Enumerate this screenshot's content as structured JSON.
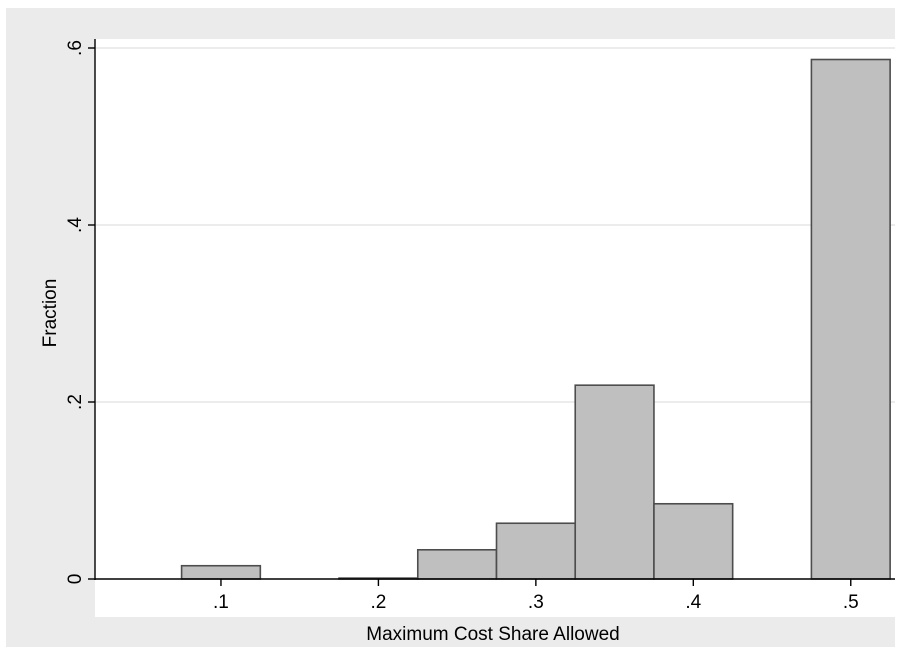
{
  "chart_data": {
    "type": "bar",
    "title": "",
    "xlabel": "Maximum Cost Share Allowed",
    "ylabel": "Fraction",
    "xlim": [
      0.02,
      0.53
    ],
    "ylim": [
      0,
      0.6
    ],
    "x_ticks": [
      {
        "value": 0.1,
        "label": ".1"
      },
      {
        "value": 0.2,
        "label": ".2"
      },
      {
        "value": 0.3,
        "label": ".3"
      },
      {
        "value": 0.4,
        "label": ".4"
      },
      {
        "value": 0.5,
        "label": ".5"
      }
    ],
    "y_ticks": [
      {
        "value": 0,
        "label": "0"
      },
      {
        "value": 0.2,
        "label": ".2"
      },
      {
        "value": 0.4,
        "label": ".4"
      },
      {
        "value": 0.6,
        "label": ".6"
      }
    ],
    "grid": true,
    "bar_width": 0.05,
    "bars": [
      {
        "x": 0.1,
        "value": 0.015
      },
      {
        "x": 0.2,
        "value": 0.001
      },
      {
        "x": 0.25,
        "value": 0.033
      },
      {
        "x": 0.3,
        "value": 0.063
      },
      {
        "x": 0.35,
        "value": 0.219
      },
      {
        "x": 0.4,
        "value": 0.085
      },
      {
        "x": 0.5,
        "value": 0.587
      }
    ],
    "colors": {
      "bar_fill": "#bfbfbf",
      "bar_edge": "#4d4d4d",
      "plot_bg": "#ffffff",
      "outer_bg": "#ebebeb",
      "grid": "#e6e6e6"
    }
  }
}
